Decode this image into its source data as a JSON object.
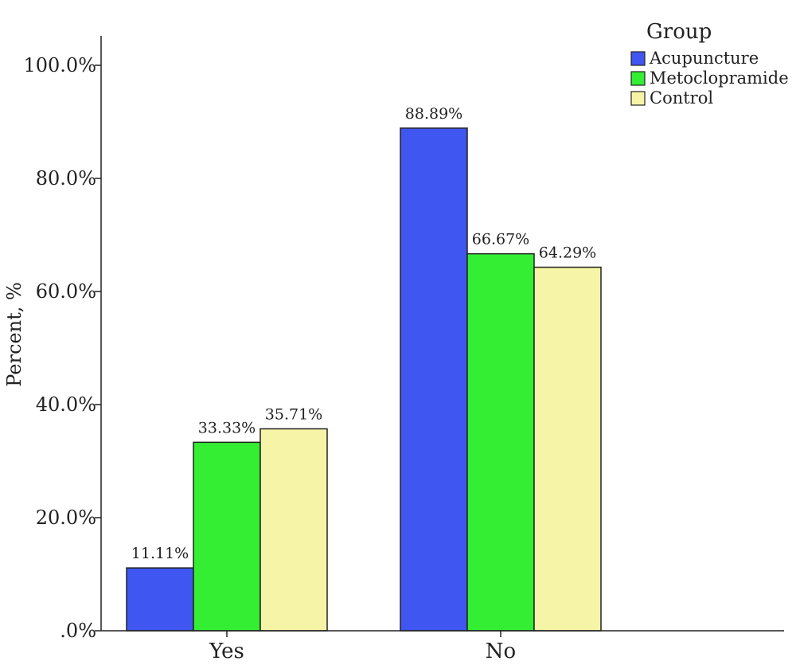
{
  "chart_data": {
    "type": "bar",
    "categories": [
      "Yes",
      "No"
    ],
    "series": [
      {
        "name": "Acupuncture",
        "values": [
          11.11,
          88.89
        ],
        "color": "#3f56f0"
      },
      {
        "name": "Metoclopramide",
        "values": [
          33.33,
          66.67
        ],
        "color": "#33ee33"
      },
      {
        "name": "Control",
        "values": [
          35.71,
          64.29
        ],
        "color": "#f6f4a6"
      }
    ],
    "data_labels": [
      [
        "11.11%",
        "88.89%"
      ],
      [
        "33.33%",
        "66.67%"
      ],
      [
        "35.71%",
        "64.29%"
      ]
    ],
    "ylabel": "Percent, %",
    "xlabel": "",
    "ylim": [
      0,
      105
    ],
    "yticks": [
      {
        "value": 0,
        "label": ".0%"
      },
      {
        "value": 20,
        "label": "20.0%"
      },
      {
        "value": 40,
        "label": "40.0%"
      },
      {
        "value": 60,
        "label": "60.0%"
      },
      {
        "value": 80,
        "label": "80.0%"
      },
      {
        "value": 100,
        "label": "100.0%"
      }
    ],
    "grid": false,
    "legend": {
      "title": "Group",
      "position": "top-right"
    }
  }
}
